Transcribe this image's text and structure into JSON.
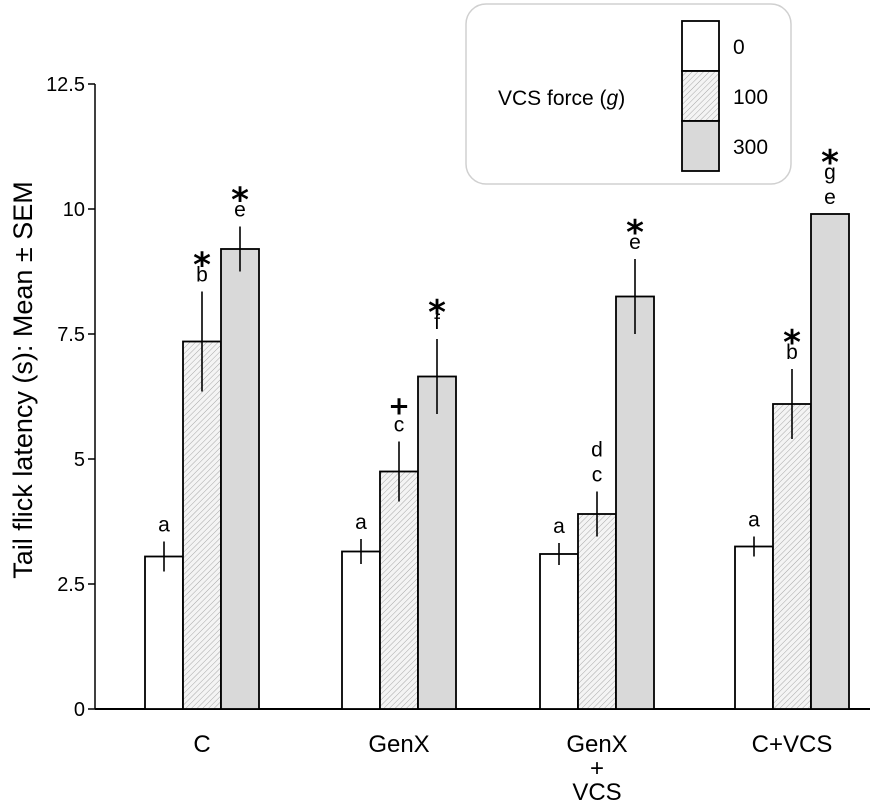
{
  "chart_data": {
    "type": "bar",
    "title": "",
    "xlabel": "",
    "ylabel": "Tail flick latency (s): Mean ± SEM",
    "ylim": [
      0,
      12.5
    ],
    "yticks": [
      "0",
      "2.5",
      "5",
      "7.5",
      "10",
      "12.5"
    ],
    "ytick_values": [
      0,
      2.5,
      5,
      7.5,
      10,
      12.5
    ],
    "categories": [
      {
        "lines": [
          "C"
        ]
      },
      {
        "lines": [
          "GenX"
        ]
      },
      {
        "lines": [
          "GenX",
          "+",
          "VCS"
        ]
      },
      {
        "lines": [
          "C+VCS"
        ]
      }
    ],
    "legend": {
      "title": "VCS force (g)",
      "title_prefix": "VCS force (",
      "title_italic": "g",
      "title_suffix": ")",
      "entries": [
        "0",
        "100",
        "300"
      ]
    },
    "series": [
      {
        "name": "0",
        "values": [
          3.05,
          3.15,
          3.1,
          3.25
        ],
        "errors": [
          0.3,
          0.25,
          0.22,
          0.2
        ],
        "letters": [
          [
            "a"
          ],
          [
            "a"
          ],
          [
            "a"
          ],
          [
            "a"
          ]
        ],
        "markers": [
          "",
          "",
          "",
          ""
        ]
      },
      {
        "name": "100",
        "values": [
          7.35,
          4.75,
          3.9,
          6.1
        ],
        "errors": [
          1.0,
          0.6,
          0.45,
          0.7
        ],
        "letters": [
          [
            "b"
          ],
          [
            "c"
          ],
          [
            "d",
            "c"
          ],
          [
            "b"
          ]
        ],
        "markers": [
          "*",
          "+",
          "",
          "*"
        ]
      },
      {
        "name": "300",
        "values": [
          9.2,
          6.65,
          8.25,
          9.9
        ],
        "errors": [
          0.45,
          0.75,
          0.75,
          0.0
        ],
        "letters": [
          [
            "e"
          ],
          [
            "f"
          ],
          [
            "e"
          ],
          [
            "g",
            "e"
          ]
        ],
        "markers": [
          "*",
          "*",
          "*",
          "*"
        ]
      }
    ],
    "colors": {
      "s0": "#ffffff",
      "s1": "#f2f2f2",
      "s2": "#d9d9d9",
      "stroke": "#000000"
    }
  }
}
